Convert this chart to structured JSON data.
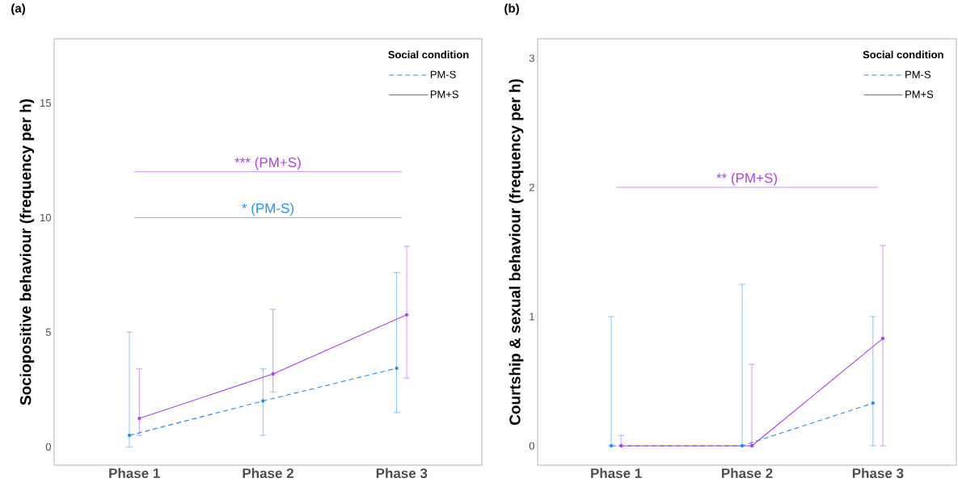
{
  "chart_data": [
    {
      "type": "line",
      "title": "(a)",
      "ylabel": "Sociopositive behaviour (frequency per h)",
      "legend_title": "Social condition",
      "categories": [
        "Phase 1",
        "Phase 2",
        "Phase 3"
      ],
      "ylim": [
        -0.8,
        17.8
      ],
      "yticks": [
        0,
        5,
        10,
        15
      ],
      "grid": false,
      "legend": "top right",
      "marker": "circle",
      "series": [
        {
          "name": "PM-S",
          "color": "#1e90ff",
          "line_style": "dashed",
          "values": [
            0.5,
            2.0,
            3.43
          ],
          "errors": [
            [
              0,
              5.0
            ],
            [
              0.5,
              3.4
            ],
            [
              1.5,
              7.6
            ]
          ]
        },
        {
          "name": "PM+S",
          "color": "#b03ef0",
          "line_style": "solid",
          "values": [
            1.24,
            3.18,
            5.76
          ],
          "errors": [
            [
              0.5,
              3.4
            ],
            [
              2.4,
              6.0
            ],
            [
              3.0,
              8.75
            ]
          ]
        }
      ],
      "ref_lines": [
        {
          "axis": "y",
          "value": 12,
          "label": "*** (PM+S)",
          "color": "#b03ef0"
        },
        {
          "axis": "y",
          "value": 10,
          "label": "* (PM-S)",
          "color": "#1e90ff"
        }
      ]
    },
    {
      "type": "line",
      "title": "(b)",
      "ylabel": "Courtship & sexual behaviour (frequency per h)",
      "legend_title": "Social condition",
      "categories": [
        "Phase 1",
        "Phase 2",
        "Phase 3"
      ],
      "ylim": [
        -0.15,
        3.15
      ],
      "yticks": [
        0,
        1,
        2,
        3
      ],
      "grid": false,
      "legend": "top right",
      "marker": "circle",
      "series": [
        {
          "name": "PM-S",
          "color": "#1e90ff",
          "line_style": "dashed",
          "values": [
            0,
            0,
            0.33
          ],
          "errors": [
            [
              0,
              1.0
            ],
            [
              0,
              1.25
            ],
            [
              0,
              1.0
            ]
          ]
        },
        {
          "name": "PM+S",
          "color": "#b03ef0",
          "line_style": "solid",
          "values": [
            0,
            0,
            0.83
          ],
          "errors": [
            [
              0,
              0.08
            ],
            [
              0,
              0.63
            ],
            [
              0,
              1.55
            ]
          ]
        }
      ],
      "ref_lines": [
        {
          "axis": "y",
          "value": 2,
          "label": "** (PM+S)",
          "color": "#b03ef0"
        }
      ]
    }
  ]
}
